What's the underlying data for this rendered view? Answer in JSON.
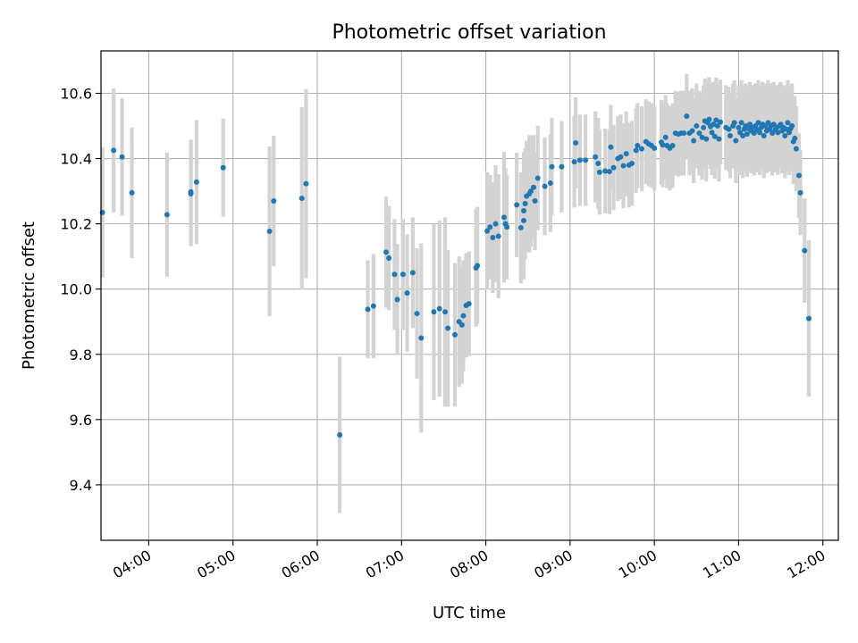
{
  "chart_data": {
    "type": "scatter",
    "title": "Photometric offset variation",
    "xlabel": "UTC time",
    "ylabel": "Photometric offset",
    "xlim": [
      "03:26",
      "12:11"
    ],
    "ylim": [
      9.23,
      10.73
    ],
    "x_ticks": [
      "04:00",
      "05:00",
      "06:00",
      "07:00",
      "08:00",
      "09:00",
      "10:00",
      "11:00",
      "12:00"
    ],
    "y_ticks": [
      9.4,
      9.6,
      9.8,
      10.0,
      10.2,
      10.4,
      10.6
    ],
    "grid": true,
    "legend": "none",
    "colors": {
      "point": "#1f77b4",
      "errorbar": "#d3d3d3"
    },
    "series": [
      {
        "points": [
          [
            "03:27",
            10.235,
            0.2
          ],
          [
            "03:35",
            10.425,
            0.19
          ],
          [
            "03:41",
            10.405,
            0.18
          ],
          [
            "03:48",
            10.295,
            0.2
          ],
          [
            "04:13",
            10.228,
            0.19
          ],
          [
            "04:30",
            10.298,
            0.16
          ],
          [
            "04:30",
            10.292,
            0.16
          ],
          [
            "04:34",
            10.328,
            0.19
          ],
          [
            "04:53",
            10.372,
            0.15
          ],
          [
            "05:26",
            10.177,
            0.26
          ],
          [
            "05:29",
            10.27,
            0.2
          ],
          [
            "05:49",
            10.278,
            0.28
          ],
          [
            "05:52",
            10.323,
            0.29
          ],
          [
            "06:16",
            9.553,
            0.24
          ],
          [
            "06:36",
            9.938,
            0.15
          ],
          [
            "06:40",
            9.948,
            0.16
          ],
          [
            "06:49",
            10.113,
            0.17
          ],
          [
            "06:51",
            10.095,
            0.16
          ],
          [
            "06:55",
            10.045,
            0.17
          ],
          [
            "06:57",
            9.968,
            0.17
          ],
          [
            "07:01",
            10.045,
            0.17
          ],
          [
            "07:04",
            9.988,
            0.18
          ],
          [
            "07:08",
            10.05,
            0.17
          ],
          [
            "07:11",
            9.925,
            0.2
          ],
          [
            "07:14",
            9.85,
            0.29
          ],
          [
            "07:23",
            9.93,
            0.27
          ],
          [
            "07:27",
            9.94,
            0.27
          ],
          [
            "07:31",
            9.93,
            0.29
          ],
          [
            "07:33",
            9.88,
            0.24
          ],
          [
            "07:38",
            9.86,
            0.22
          ],
          [
            "07:41",
            9.9,
            0.2
          ],
          [
            "07:43",
            9.89,
            0.18
          ],
          [
            "07:44",
            9.918,
            0.17
          ],
          [
            "07:46",
            9.95,
            0.16
          ],
          [
            "07:48",
            9.955,
            0.16
          ],
          [
            "07:53",
            10.065,
            0.18
          ],
          [
            "07:54",
            10.072,
            0.18
          ],
          [
            "08:01",
            10.178,
            0.18
          ],
          [
            "08:03",
            10.19,
            0.16
          ],
          [
            "08:05",
            10.158,
            0.17
          ],
          [
            "08:07",
            10.2,
            0.18
          ],
          [
            "08:09",
            10.162,
            0.19
          ],
          [
            "08:13",
            10.22,
            0.2
          ],
          [
            "08:14",
            10.2,
            0.17
          ],
          [
            "08:15",
            10.19,
            0.16
          ],
          [
            "08:22",
            10.258,
            0.16
          ],
          [
            "08:25",
            10.188,
            0.17
          ],
          [
            "08:27",
            10.24,
            0.18
          ],
          [
            "08:27",
            10.21,
            0.18
          ],
          [
            "08:28",
            10.262,
            0.17
          ],
          [
            "08:29",
            10.285,
            0.17
          ],
          [
            "08:31",
            10.292,
            0.18
          ],
          [
            "08:32",
            10.3,
            0.17
          ],
          [
            "08:34",
            10.312,
            0.16
          ],
          [
            "08:35",
            10.27,
            0.15
          ],
          [
            "08:37",
            10.34,
            0.16
          ],
          [
            "08:42",
            10.315,
            0.15
          ],
          [
            "08:46",
            10.325,
            0.15
          ],
          [
            "08:47",
            10.375,
            0.15
          ],
          [
            "08:54",
            10.375,
            0.14
          ],
          [
            "09:03",
            10.39,
            0.14
          ],
          [
            "09:04",
            10.448,
            0.14
          ],
          [
            "09:07",
            10.395,
            0.14
          ],
          [
            "09:11",
            10.395,
            0.14
          ],
          [
            "09:18",
            10.405,
            0.14
          ],
          [
            "09:20",
            10.385,
            0.14
          ],
          [
            "09:21",
            10.358,
            0.13
          ],
          [
            "09:25",
            10.362,
            0.13
          ],
          [
            "09:28",
            10.36,
            0.13
          ],
          [
            "09:29",
            10.435,
            0.13
          ],
          [
            "09:31",
            10.372,
            0.13
          ],
          [
            "09:34",
            10.4,
            0.13
          ],
          [
            "09:36",
            10.405,
            0.13
          ],
          [
            "09:38",
            10.378,
            0.13
          ],
          [
            "09:40",
            10.415,
            0.13
          ],
          [
            "09:42",
            10.38,
            0.13
          ],
          [
            "09:44",
            10.385,
            0.13
          ],
          [
            "09:47",
            10.425,
            0.13
          ],
          [
            "09:48",
            10.44,
            0.13
          ],
          [
            "09:51",
            10.43,
            0.13
          ],
          [
            "09:54",
            10.452,
            0.13
          ],
          [
            "09:56",
            10.445,
            0.13
          ],
          [
            "09:58",
            10.44,
            0.13
          ],
          [
            "10:00",
            10.432,
            0.13
          ],
          [
            "10:05",
            10.45,
            0.13
          ],
          [
            "10:06",
            10.442,
            0.13
          ],
          [
            "10:08",
            10.465,
            0.13
          ],
          [
            "10:09",
            10.44,
            0.13
          ],
          [
            "10:11",
            10.432,
            0.13
          ],
          [
            "10:13",
            10.44,
            0.13
          ],
          [
            "10:15",
            10.478,
            0.13
          ],
          [
            "10:17",
            10.475,
            0.13
          ],
          [
            "10:19",
            10.478,
            0.13
          ],
          [
            "10:21",
            10.478,
            0.13
          ],
          [
            "10:23",
            10.53,
            0.13
          ],
          [
            "10:25",
            10.478,
            0.13
          ],
          [
            "10:27",
            10.485,
            0.13
          ],
          [
            "10:28",
            10.455,
            0.13
          ],
          [
            "10:30",
            10.5,
            0.13
          ],
          [
            "10:32",
            10.478,
            0.13
          ],
          [
            "10:34",
            10.465,
            0.13
          ],
          [
            "10:35",
            10.495,
            0.13
          ],
          [
            "10:36",
            10.515,
            0.13
          ],
          [
            "10:37",
            10.46,
            0.13
          ],
          [
            "10:38",
            10.51,
            0.13
          ],
          [
            "10:39",
            10.52,
            0.13
          ],
          [
            "10:40",
            10.498,
            0.13
          ],
          [
            "10:41",
            10.48,
            0.13
          ],
          [
            "10:42",
            10.505,
            0.13
          ],
          [
            "10:43",
            10.468,
            0.13
          ],
          [
            "10:44",
            10.518,
            0.13
          ],
          [
            "10:45",
            10.5,
            0.13
          ],
          [
            "10:46",
            10.46,
            0.13
          ],
          [
            "10:47",
            10.512,
            0.13
          ],
          [
            "10:51",
            10.495,
            0.13
          ],
          [
            "10:53",
            10.49,
            0.13
          ],
          [
            "10:54",
            10.47,
            0.13
          ],
          [
            "10:56",
            10.5,
            0.13
          ],
          [
            "10:57",
            10.51,
            0.13
          ],
          [
            "10:58",
            10.455,
            0.13
          ],
          [
            "11:00",
            10.495,
            0.13
          ],
          [
            "11:01",
            10.48,
            0.13
          ],
          [
            "11:02",
            10.51,
            0.13
          ],
          [
            "11:03",
            10.47,
            0.13
          ],
          [
            "11:04",
            10.49,
            0.13
          ],
          [
            "11:05",
            10.5,
            0.13
          ],
          [
            "11:06",
            10.475,
            0.13
          ],
          [
            "11:07",
            10.492,
            0.13
          ],
          [
            "11:08",
            10.505,
            0.13
          ],
          [
            "11:09",
            10.485,
            0.13
          ],
          [
            "11:10",
            10.495,
            0.13
          ],
          [
            "11:11",
            10.478,
            0.13
          ],
          [
            "11:12",
            10.5,
            0.13
          ],
          [
            "11:13",
            10.488,
            0.13
          ],
          [
            "11:14",
            10.51,
            0.13
          ],
          [
            "11:15",
            10.48,
            0.13
          ],
          [
            "11:16",
            10.495,
            0.13
          ],
          [
            "11:17",
            10.505,
            0.13
          ],
          [
            "11:18",
            10.47,
            0.13
          ],
          [
            "11:19",
            10.5,
            0.13
          ],
          [
            "11:20",
            10.485,
            0.13
          ],
          [
            "11:21",
            10.51,
            0.13
          ],
          [
            "11:22",
            10.49,
            0.13
          ],
          [
            "11:23",
            10.5,
            0.13
          ],
          [
            "11:24",
            10.478,
            0.13
          ],
          [
            "11:25",
            10.505,
            0.13
          ],
          [
            "11:26",
            10.488,
            0.13
          ],
          [
            "11:27",
            10.495,
            0.13
          ],
          [
            "11:28",
            10.48,
            0.13
          ],
          [
            "11:29",
            10.5,
            0.13
          ],
          [
            "11:30",
            10.505,
            0.13
          ],
          [
            "11:31",
            10.485,
            0.13
          ],
          [
            "11:32",
            10.495,
            0.13
          ],
          [
            "11:33",
            10.47,
            0.13
          ],
          [
            "11:34",
            10.49,
            0.13
          ],
          [
            "11:35",
            10.51,
            0.13
          ],
          [
            "11:36",
            10.48,
            0.13
          ],
          [
            "11:37",
            10.492,
            0.13
          ],
          [
            "11:38",
            10.5,
            0.13
          ],
          [
            "11:39",
            10.452,
            0.13
          ],
          [
            "11:40",
            10.462,
            0.13
          ],
          [
            "11:41",
            10.43,
            0.13
          ],
          [
            "11:43",
            10.348,
            0.13
          ],
          [
            "11:44",
            10.295,
            0.13
          ],
          [
            "11:47",
            10.118,
            0.16
          ],
          [
            "11:50",
            9.91,
            0.24
          ]
        ]
      }
    ]
  }
}
